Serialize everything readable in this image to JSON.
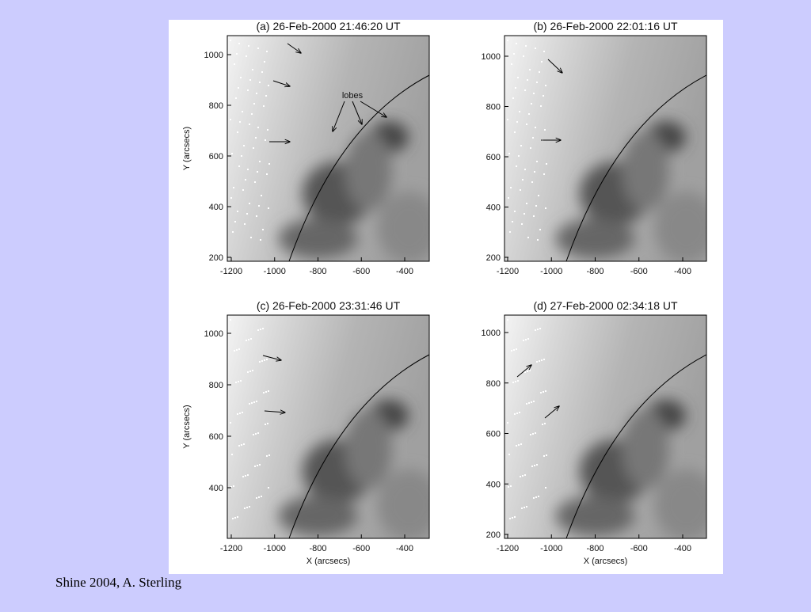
{
  "panels": [
    {
      "title": "(a) 26-Feb-2000 21:46:20 UT",
      "xticks": [
        -1200,
        -1000,
        -800,
        -600,
        -400
      ],
      "yticks": [
        1000,
        800,
        600,
        400,
        200
      ],
      "ylabel": "Y (arcsecs)",
      "annotation": "lobes"
    },
    {
      "title": "(b) 26-Feb-2000 22:01:16 UT",
      "xticks": [
        -1200,
        -1000,
        -800,
        -600,
        -400
      ],
      "yticks": [
        1000,
        800,
        600,
        400,
        200
      ]
    },
    {
      "title": "(c) 26-Feb-2000 23:31:46 UT",
      "xticks": [
        -1200,
        -1000,
        -800,
        -600,
        -400
      ],
      "yticks": [
        1000,
        800,
        600,
        400
      ],
      "ylabel": "Y (arcsecs)",
      "xlabel": "X (arcsecs)"
    },
    {
      "title": "(d) 27-Feb-2000 02:34:18 UT",
      "xticks": [
        -1200,
        -1000,
        -800,
        -600,
        -400
      ],
      "yticks": [
        1000,
        800,
        600,
        400,
        200
      ],
      "xlabel": "X (arcsecs)"
    }
  ],
  "caption": "Shine 2004, A. Sterling"
}
